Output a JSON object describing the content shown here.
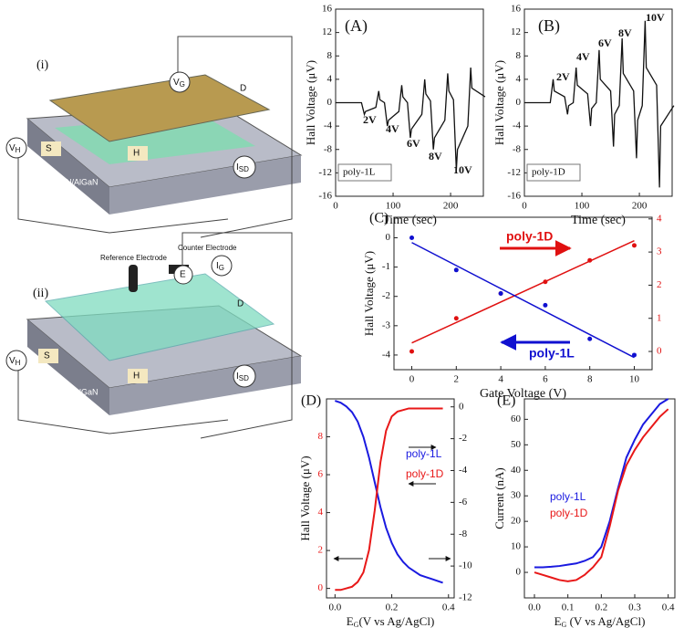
{
  "schematics": [
    {
      "label": "(i)",
      "gate": [
        "V",
        "G"
      ],
      "drain": "D",
      "hall": [
        "V",
        "H"
      ],
      "source": "S",
      "h": "H",
      "current": [
        "I",
        "SD"
      ],
      "substrate": "GaN/AlGaN"
    },
    {
      "label": "(ii)",
      "reference": "Reference Electrode",
      "counter": "Counter Electrode",
      "electrode": "E",
      "gate_current": [
        "I",
        "G"
      ],
      "drain": "D",
      "hall": [
        "V",
        "H"
      ],
      "source": "S",
      "h": "H",
      "current": [
        "I",
        "SD"
      ],
      "substrate": "GaN/AlGaN"
    }
  ],
  "chart_data": [
    {
      "type": "line",
      "title": "(A)",
      "ylabel": "Hall Voltage (μV)",
      "xlabel": "Time (sec)",
      "x": [
        0,
        45,
        50,
        52,
        70,
        75,
        77,
        85,
        90,
        92,
        110,
        115,
        117,
        125,
        130,
        132,
        150,
        155,
        157,
        165,
        170,
        172,
        190,
        195,
        197,
        205,
        210,
        212,
        230,
        235,
        237,
        260
      ],
      "series": [
        {
          "name": "poly-1L",
          "color": "#111111",
          "values": [
            0,
            0,
            -2,
            -1.5,
            -0.8,
            2,
            0.5,
            0,
            -4,
            -3,
            -1.5,
            3,
            1,
            0,
            -6,
            -4.5,
            -2,
            4,
            1.5,
            0.3,
            -8,
            -6,
            -3,
            5,
            2,
            0.5,
            -11.5,
            -8,
            -4,
            6,
            2.5,
            1
          ]
        }
      ],
      "annotations": [
        "2V",
        "4V",
        "6V",
        "8V",
        "10V"
      ],
      "xlim": [
        0,
        257
      ],
      "xticks": [
        0,
        100,
        200
      ],
      "ylim": [
        -16,
        16
      ],
      "yticks": [
        -16,
        -12,
        -8,
        -4,
        0,
        4,
        8,
        12,
        16
      ]
    },
    {
      "type": "line",
      "title": "(B)",
      "ylabel": "Hall Voltage (μV)",
      "xlabel": "Time (sec)",
      "x": [
        0,
        45,
        50,
        52,
        70,
        75,
        77,
        85,
        90,
        92,
        110,
        115,
        117,
        125,
        130,
        132,
        150,
        155,
        157,
        165,
        170,
        172,
        190,
        195,
        197,
        205,
        210,
        212,
        230,
        235,
        237,
        260
      ],
      "series": [
        {
          "name": "poly-1D",
          "color": "#111111",
          "values": [
            0,
            0,
            4,
            2,
            1,
            -2,
            -0.5,
            0,
            6,
            3,
            1.5,
            -4,
            -1,
            0,
            9,
            4,
            2,
            -7.5,
            -2,
            -0.5,
            11,
            5,
            2,
            -9.5,
            -3,
            -0.5,
            14,
            6,
            3,
            -14.5,
            -4,
            -0.5
          ]
        }
      ],
      "annotations": [
        "2V",
        "4V",
        "6V",
        "8V",
        "10V"
      ],
      "xlim": [
        0,
        257
      ],
      "xticks": [
        0,
        100,
        200
      ],
      "ylim": [
        -16,
        16
      ],
      "yticks": [
        -16,
        -12,
        -8,
        -4,
        0,
        4,
        8,
        12,
        16
      ]
    },
    {
      "type": "scatter",
      "title": "(C)",
      "ylabel": "Hall Voltage (μV)",
      "xlabel": "Gate Voltage (V)",
      "x": [
        0,
        2,
        4,
        6,
        8,
        10
      ],
      "series": [
        {
          "name": "poly-1D",
          "color": "#e01010",
          "axis": "y2",
          "values": [
            0,
            1.0,
            1.75,
            2.1,
            2.75,
            3.2
          ]
        },
        {
          "name": "poly-1L",
          "color": "#1010d0",
          "values": [
            0,
            -1.1,
            -1.9,
            -2.3,
            -3.45,
            -4.0
          ]
        }
      ],
      "xlim": [
        -0.8,
        10.8
      ],
      "xticks": [
        0,
        2,
        4,
        6,
        8,
        10
      ],
      "ylim": [
        -4.5,
        0.7
      ],
      "yticks": [
        -4,
        -3,
        -2,
        -1,
        0
      ],
      "y2lim": [
        -0.55,
        4.05
      ],
      "y2ticks": [
        0,
        1,
        2,
        3,
        4
      ]
    },
    {
      "type": "line",
      "title": "(D)",
      "ylabel": "Hall Voltage (μV)",
      "xlabel": [
        "E",
        "G",
        "(V vs Ag/AgCl)"
      ],
      "x": [
        0,
        0.02,
        0.04,
        0.06,
        0.08,
        0.1,
        0.12,
        0.14,
        0.16,
        0.18,
        0.2,
        0.22,
        0.24,
        0.26,
        0.28,
        0.3,
        0.32,
        0.34,
        0.36,
        0.38
      ],
      "series": [
        {
          "name": "poly-1L",
          "color": "#1a1ae0",
          "values": [
            9.9,
            9.8,
            9.6,
            9.3,
            8.8,
            8.0,
            6.9,
            5.6,
            4.3,
            3.2,
            2.4,
            1.8,
            1.4,
            1.1,
            0.9,
            0.7,
            0.6,
            0.5,
            0.4,
            0.3
          ]
        },
        {
          "name": "poly-1D",
          "color": "#e81818",
          "axis": "y2",
          "values": [
            -11.5,
            -11.5,
            -11.4,
            -11.3,
            -11,
            -10.4,
            -9,
            -6.5,
            -3.5,
            -1.5,
            -0.6,
            -0.3,
            -0.2,
            -0.1,
            -0.1,
            -0.1,
            -0.1,
            -0.1,
            -0.1,
            -0.1
          ]
        }
      ],
      "xlim": [
        -0.03,
        0.42
      ],
      "xticks": [
        {
          "value": 0,
          "label": "0.0"
        },
        0.2,
        0.4
      ],
      "ylim": [
        -0.5,
        10
      ],
      "yticks": [
        0,
        2,
        4,
        6,
        8
      ],
      "y2lim": [
        -12,
        0.5
      ],
      "y2ticks": [
        0,
        -2,
        -4,
        -6,
        -8,
        -10,
        -12
      ]
    },
    {
      "type": "line",
      "title": "(E)",
      "ylabel": "Current (nA)",
      "xlabel": [
        "E",
        "G",
        " (V vs Ag/AgCl)"
      ],
      "x": [
        0,
        0.025,
        0.05,
        0.075,
        0.1,
        0.125,
        0.15,
        0.175,
        0.2,
        0.225,
        0.25,
        0.275,
        0.3,
        0.325,
        0.35,
        0.375,
        0.4
      ],
      "series": [
        {
          "name": "poly-1L",
          "color": "#1a1ae0",
          "values": [
            2,
            2,
            2.2,
            2.5,
            3,
            3.5,
            4.5,
            6,
            10,
            20,
            33,
            45,
            52,
            58,
            62,
            66,
            68
          ]
        },
        {
          "name": "poly-1D",
          "color": "#e81818",
          "values": [
            0,
            -1,
            -2,
            -3,
            -3.5,
            -3,
            -1,
            2,
            6,
            18,
            32,
            42,
            48,
            53,
            57,
            61,
            64
          ]
        }
      ],
      "xlim": [
        -0.03,
        0.42
      ],
      "xticks": [
        {
          "value": 0,
          "label": "0.0"
        },
        0.1,
        0.2,
        0.3,
        0.4
      ],
      "ylim": [
        -10,
        68
      ],
      "yticks": [
        0,
        10,
        20,
        30,
        40,
        50,
        60
      ]
    }
  ]
}
